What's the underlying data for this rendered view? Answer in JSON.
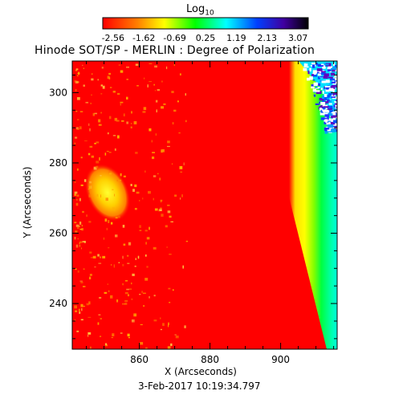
{
  "header": {
    "colorbar_title": "Log",
    "colorbar_title_sub": "10",
    "title": "Hinode SOT/SP - MERLIN : Degree of Polarization",
    "timestamp": "3-Feb-2017 10:19:34.797"
  },
  "chart_data": {
    "type": "heatmap",
    "xlabel": "X (Arcseconds)",
    "ylabel": "Y (Arcseconds)",
    "xlim": [
      841,
      916
    ],
    "ylim": [
      227,
      309
    ],
    "x_ticks": [
      860,
      880,
      900
    ],
    "y_ticks": [
      240,
      260,
      280,
      300
    ],
    "colorbar": {
      "tick_labels": [
        "-2.56",
        "-1.62",
        "-0.69",
        "0.25",
        "1.19",
        "2.13",
        "3.07"
      ],
      "range": [
        -2.56,
        3.07
      ]
    },
    "colors": {
      "background_low": "#ff0000",
      "bright_patch": "#ffe000",
      "limb_band": [
        "#ffff00",
        "#00ff00",
        "#00ffff",
        "#0070ff",
        "#ffffff"
      ]
    }
  }
}
